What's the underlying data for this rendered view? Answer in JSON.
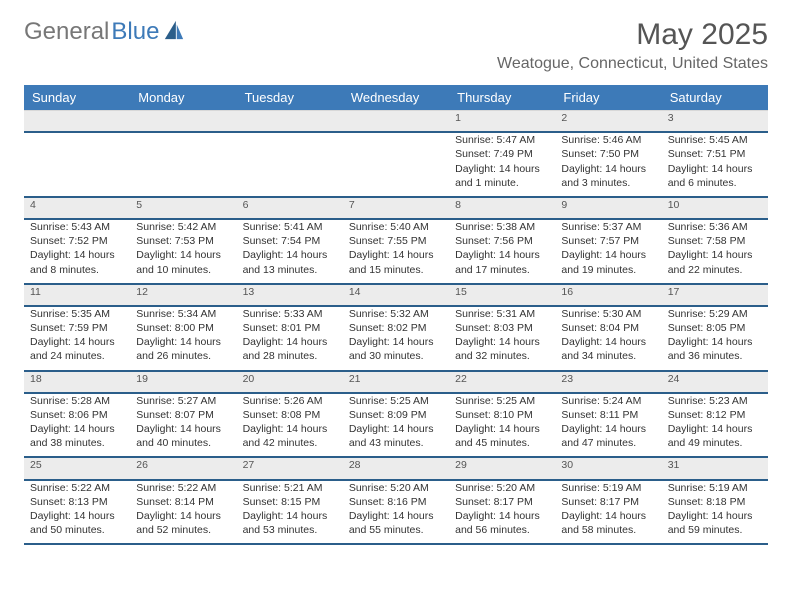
{
  "logo": {
    "part1": "General",
    "part2": "Blue"
  },
  "title": "May 2025",
  "location": "Weatogue, Connecticut, United States",
  "colors": {
    "header_bg": "#3d7ab8",
    "rule": "#2b5e8a",
    "daynum_bg": "#ececec"
  },
  "weekdays": [
    "Sunday",
    "Monday",
    "Tuesday",
    "Wednesday",
    "Thursday",
    "Friday",
    "Saturday"
  ],
  "weeks": [
    [
      null,
      null,
      null,
      null,
      {
        "n": "1",
        "sunrise": "Sunrise: 5:47 AM",
        "sunset": "Sunset: 7:49 PM",
        "daylight": "Daylight: 14 hours and 1 minute."
      },
      {
        "n": "2",
        "sunrise": "Sunrise: 5:46 AM",
        "sunset": "Sunset: 7:50 PM",
        "daylight": "Daylight: 14 hours and 3 minutes."
      },
      {
        "n": "3",
        "sunrise": "Sunrise: 5:45 AM",
        "sunset": "Sunset: 7:51 PM",
        "daylight": "Daylight: 14 hours and 6 minutes."
      }
    ],
    [
      {
        "n": "4",
        "sunrise": "Sunrise: 5:43 AM",
        "sunset": "Sunset: 7:52 PM",
        "daylight": "Daylight: 14 hours and 8 minutes."
      },
      {
        "n": "5",
        "sunrise": "Sunrise: 5:42 AM",
        "sunset": "Sunset: 7:53 PM",
        "daylight": "Daylight: 14 hours and 10 minutes."
      },
      {
        "n": "6",
        "sunrise": "Sunrise: 5:41 AM",
        "sunset": "Sunset: 7:54 PM",
        "daylight": "Daylight: 14 hours and 13 minutes."
      },
      {
        "n": "7",
        "sunrise": "Sunrise: 5:40 AM",
        "sunset": "Sunset: 7:55 PM",
        "daylight": "Daylight: 14 hours and 15 minutes."
      },
      {
        "n": "8",
        "sunrise": "Sunrise: 5:38 AM",
        "sunset": "Sunset: 7:56 PM",
        "daylight": "Daylight: 14 hours and 17 minutes."
      },
      {
        "n": "9",
        "sunrise": "Sunrise: 5:37 AM",
        "sunset": "Sunset: 7:57 PM",
        "daylight": "Daylight: 14 hours and 19 minutes."
      },
      {
        "n": "10",
        "sunrise": "Sunrise: 5:36 AM",
        "sunset": "Sunset: 7:58 PM",
        "daylight": "Daylight: 14 hours and 22 minutes."
      }
    ],
    [
      {
        "n": "11",
        "sunrise": "Sunrise: 5:35 AM",
        "sunset": "Sunset: 7:59 PM",
        "daylight": "Daylight: 14 hours and 24 minutes."
      },
      {
        "n": "12",
        "sunrise": "Sunrise: 5:34 AM",
        "sunset": "Sunset: 8:00 PM",
        "daylight": "Daylight: 14 hours and 26 minutes."
      },
      {
        "n": "13",
        "sunrise": "Sunrise: 5:33 AM",
        "sunset": "Sunset: 8:01 PM",
        "daylight": "Daylight: 14 hours and 28 minutes."
      },
      {
        "n": "14",
        "sunrise": "Sunrise: 5:32 AM",
        "sunset": "Sunset: 8:02 PM",
        "daylight": "Daylight: 14 hours and 30 minutes."
      },
      {
        "n": "15",
        "sunrise": "Sunrise: 5:31 AM",
        "sunset": "Sunset: 8:03 PM",
        "daylight": "Daylight: 14 hours and 32 minutes."
      },
      {
        "n": "16",
        "sunrise": "Sunrise: 5:30 AM",
        "sunset": "Sunset: 8:04 PM",
        "daylight": "Daylight: 14 hours and 34 minutes."
      },
      {
        "n": "17",
        "sunrise": "Sunrise: 5:29 AM",
        "sunset": "Sunset: 8:05 PM",
        "daylight": "Daylight: 14 hours and 36 minutes."
      }
    ],
    [
      {
        "n": "18",
        "sunrise": "Sunrise: 5:28 AM",
        "sunset": "Sunset: 8:06 PM",
        "daylight": "Daylight: 14 hours and 38 minutes."
      },
      {
        "n": "19",
        "sunrise": "Sunrise: 5:27 AM",
        "sunset": "Sunset: 8:07 PM",
        "daylight": "Daylight: 14 hours and 40 minutes."
      },
      {
        "n": "20",
        "sunrise": "Sunrise: 5:26 AM",
        "sunset": "Sunset: 8:08 PM",
        "daylight": "Daylight: 14 hours and 42 minutes."
      },
      {
        "n": "21",
        "sunrise": "Sunrise: 5:25 AM",
        "sunset": "Sunset: 8:09 PM",
        "daylight": "Daylight: 14 hours and 43 minutes."
      },
      {
        "n": "22",
        "sunrise": "Sunrise: 5:25 AM",
        "sunset": "Sunset: 8:10 PM",
        "daylight": "Daylight: 14 hours and 45 minutes."
      },
      {
        "n": "23",
        "sunrise": "Sunrise: 5:24 AM",
        "sunset": "Sunset: 8:11 PM",
        "daylight": "Daylight: 14 hours and 47 minutes."
      },
      {
        "n": "24",
        "sunrise": "Sunrise: 5:23 AM",
        "sunset": "Sunset: 8:12 PM",
        "daylight": "Daylight: 14 hours and 49 minutes."
      }
    ],
    [
      {
        "n": "25",
        "sunrise": "Sunrise: 5:22 AM",
        "sunset": "Sunset: 8:13 PM",
        "daylight": "Daylight: 14 hours and 50 minutes."
      },
      {
        "n": "26",
        "sunrise": "Sunrise: 5:22 AM",
        "sunset": "Sunset: 8:14 PM",
        "daylight": "Daylight: 14 hours and 52 minutes."
      },
      {
        "n": "27",
        "sunrise": "Sunrise: 5:21 AM",
        "sunset": "Sunset: 8:15 PM",
        "daylight": "Daylight: 14 hours and 53 minutes."
      },
      {
        "n": "28",
        "sunrise": "Sunrise: 5:20 AM",
        "sunset": "Sunset: 8:16 PM",
        "daylight": "Daylight: 14 hours and 55 minutes."
      },
      {
        "n": "29",
        "sunrise": "Sunrise: 5:20 AM",
        "sunset": "Sunset: 8:17 PM",
        "daylight": "Daylight: 14 hours and 56 minutes."
      },
      {
        "n": "30",
        "sunrise": "Sunrise: 5:19 AM",
        "sunset": "Sunset: 8:17 PM",
        "daylight": "Daylight: 14 hours and 58 minutes."
      },
      {
        "n": "31",
        "sunrise": "Sunrise: 5:19 AM",
        "sunset": "Sunset: 8:18 PM",
        "daylight": "Daylight: 14 hours and 59 minutes."
      }
    ]
  ]
}
